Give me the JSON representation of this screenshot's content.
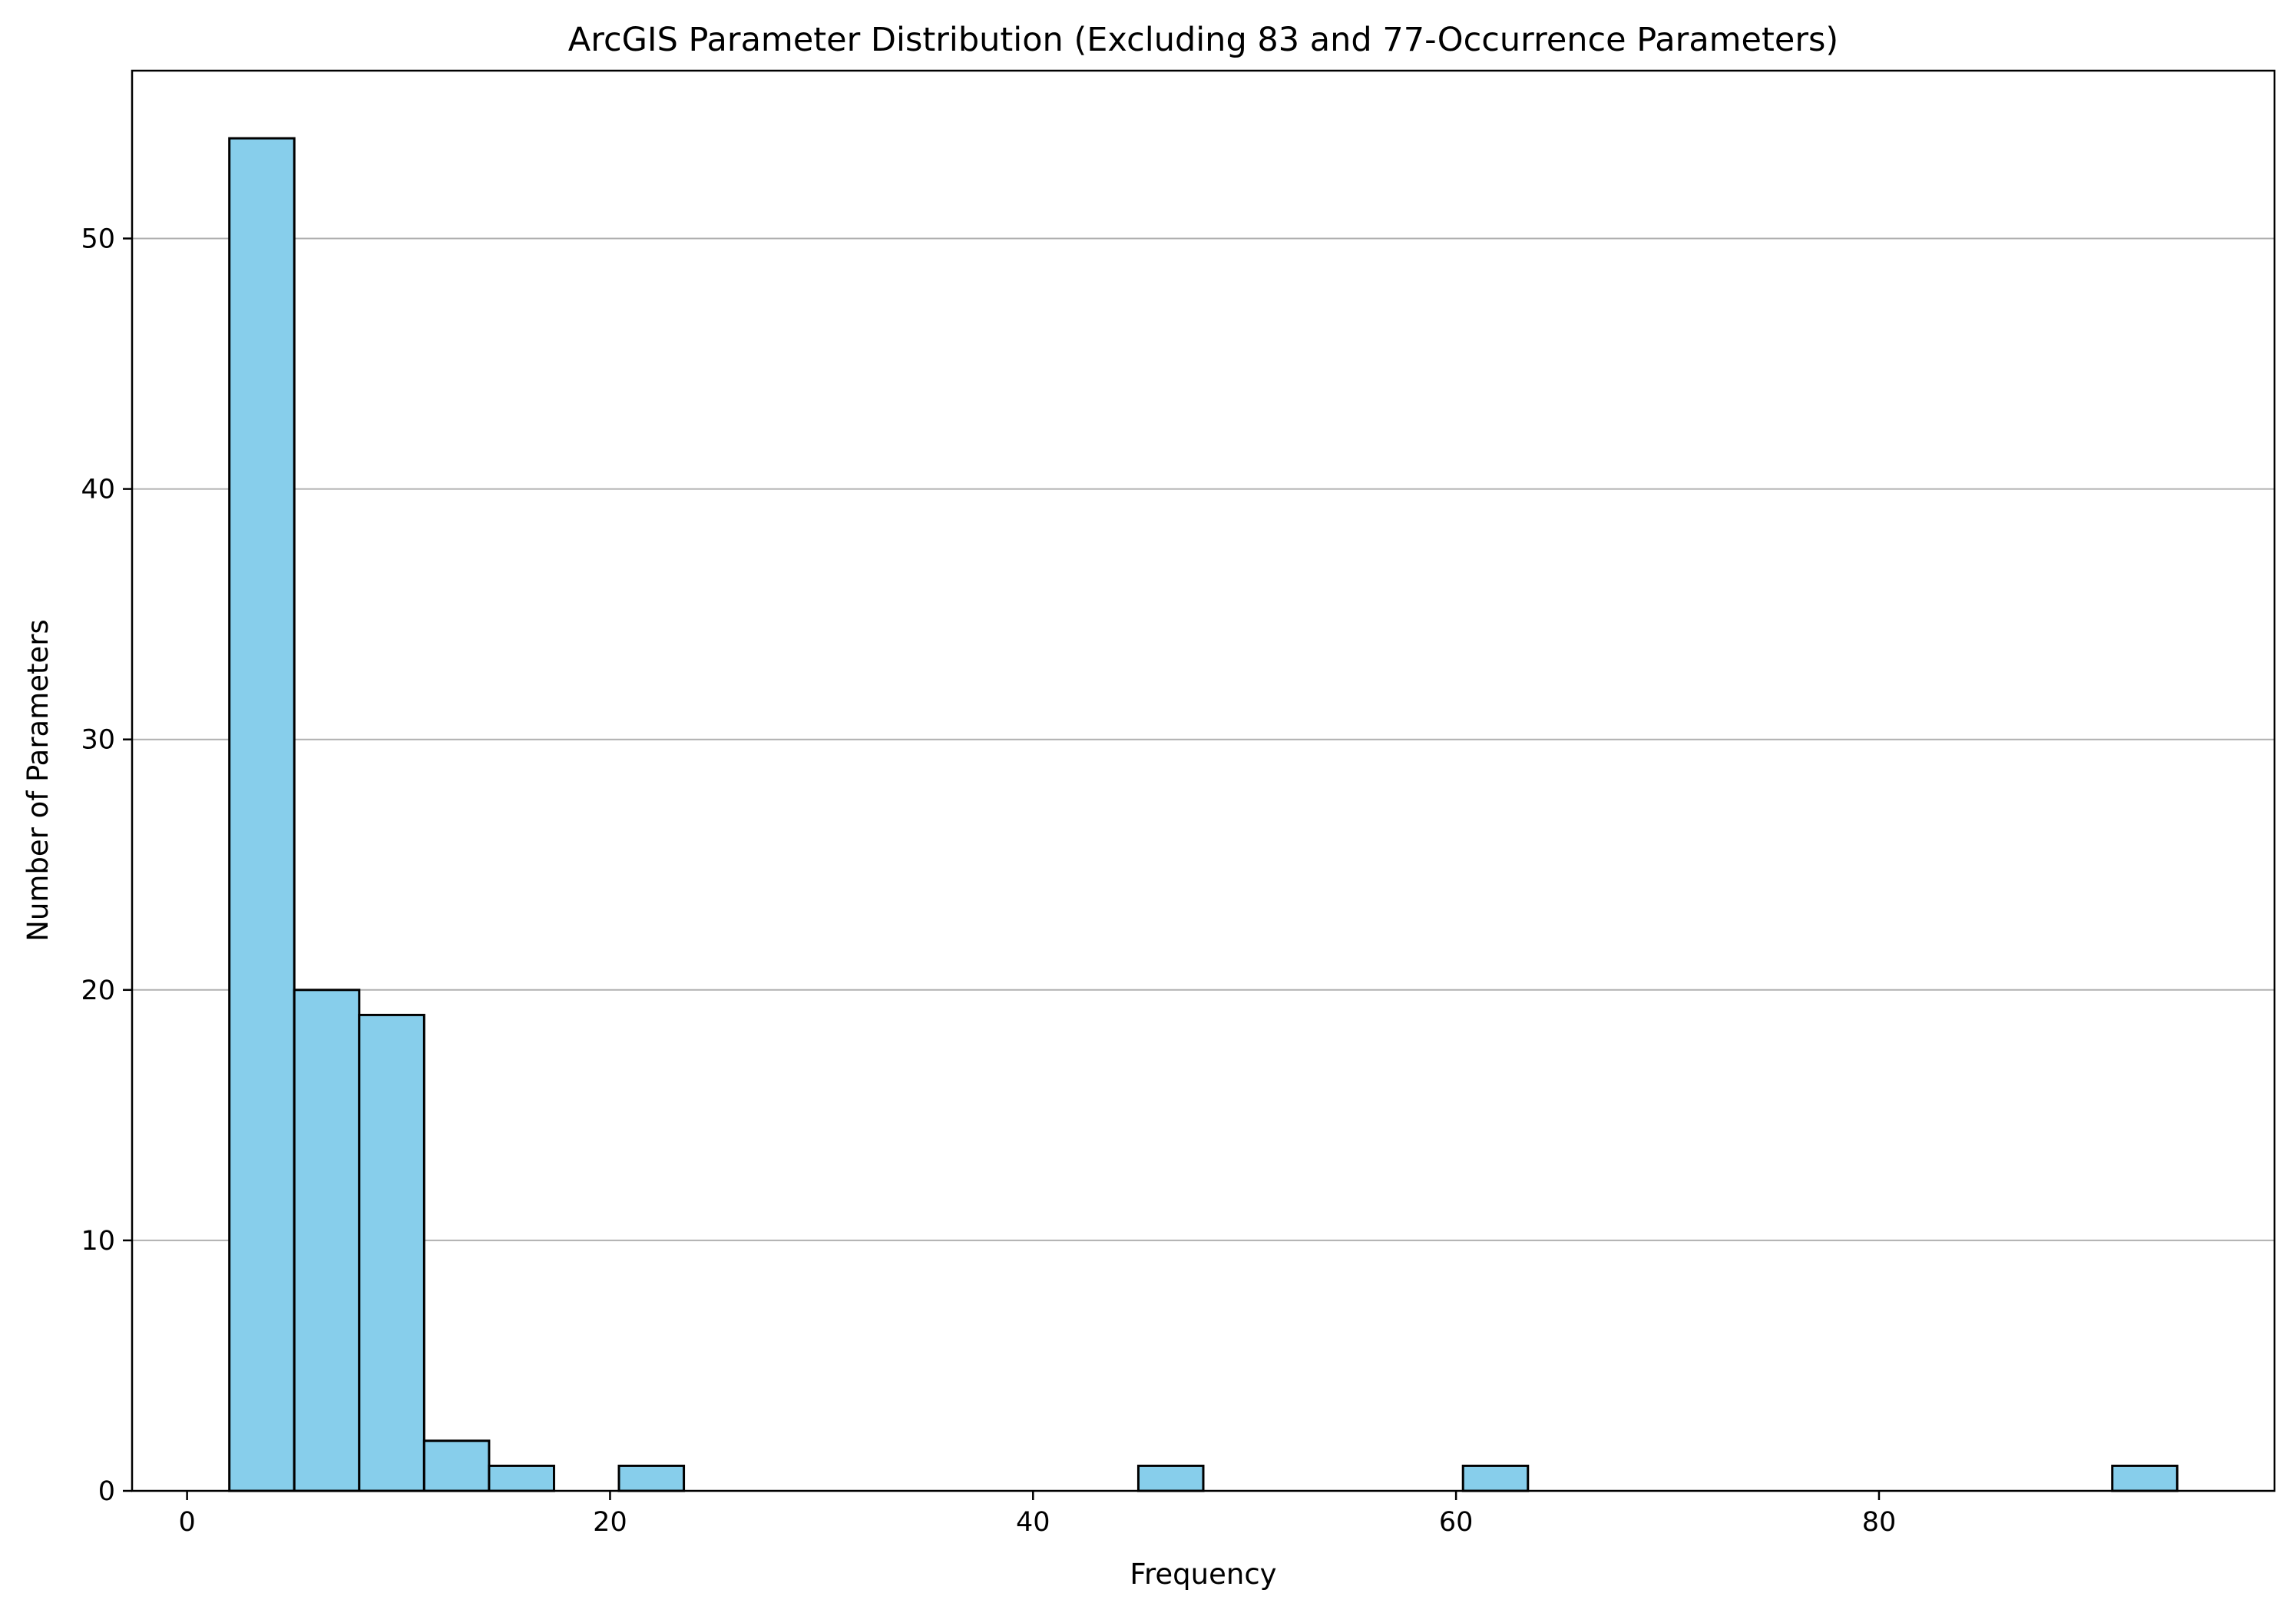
{
  "chart_data": {
    "type": "bar",
    "title": "ArcGIS Parameter Distribution (Excluding 83 and 77-Occurrence Parameters)",
    "xlabel": "Frequency",
    "ylabel": "Number of Parameters",
    "bin_width": 3.07,
    "bins": [
      {
        "start": 2.0,
        "end": 5.07,
        "count": 54
      },
      {
        "start": 5.07,
        "end": 8.14,
        "count": 20
      },
      {
        "start": 8.14,
        "end": 11.21,
        "count": 19
      },
      {
        "start": 11.21,
        "end": 14.28,
        "count": 2
      },
      {
        "start": 14.28,
        "end": 17.35,
        "count": 1
      },
      {
        "start": 17.35,
        "end": 20.42,
        "count": 0
      },
      {
        "start": 20.42,
        "end": 23.49,
        "count": 1
      },
      {
        "start": 23.49,
        "end": 26.56,
        "count": 0
      },
      {
        "start": 26.56,
        "end": 29.63,
        "count": 0
      },
      {
        "start": 29.63,
        "end": 32.7,
        "count": 0
      },
      {
        "start": 32.7,
        "end": 35.77,
        "count": 0
      },
      {
        "start": 35.77,
        "end": 38.84,
        "count": 0
      },
      {
        "start": 38.84,
        "end": 41.91,
        "count": 0
      },
      {
        "start": 41.91,
        "end": 44.98,
        "count": 0
      },
      {
        "start": 44.98,
        "end": 48.05,
        "count": 1
      },
      {
        "start": 48.05,
        "end": 51.12,
        "count": 0
      },
      {
        "start": 51.12,
        "end": 54.19,
        "count": 0
      },
      {
        "start": 54.19,
        "end": 57.26,
        "count": 0
      },
      {
        "start": 57.26,
        "end": 60.33,
        "count": 0
      },
      {
        "start": 60.33,
        "end": 63.4,
        "count": 1
      },
      {
        "start": 63.4,
        "end": 66.47,
        "count": 0
      },
      {
        "start": 66.47,
        "end": 69.54,
        "count": 0
      },
      {
        "start": 69.54,
        "end": 72.61,
        "count": 0
      },
      {
        "start": 72.61,
        "end": 75.68,
        "count": 0
      },
      {
        "start": 75.68,
        "end": 78.75,
        "count": 0
      },
      {
        "start": 78.75,
        "end": 81.82,
        "count": 0
      },
      {
        "start": 81.82,
        "end": 84.89,
        "count": 0
      },
      {
        "start": 84.89,
        "end": 87.96,
        "count": 0
      },
      {
        "start": 87.96,
        "end": 91.03,
        "count": 0
      },
      {
        "start": 91.03,
        "end": 94.1,
        "count": 1
      }
    ],
    "xlim": [
      -2.6,
      98.7
    ],
    "ylim": [
      0,
      56.7
    ],
    "xticks": [
      0,
      20,
      40,
      60,
      80
    ],
    "yticks": [
      0,
      10,
      20,
      30,
      40,
      50
    ],
    "grid": "y-axis only",
    "colors": {
      "bar_fill": "#87ceeb",
      "bar_edge": "#000000",
      "grid": "#b0b0b0"
    }
  }
}
